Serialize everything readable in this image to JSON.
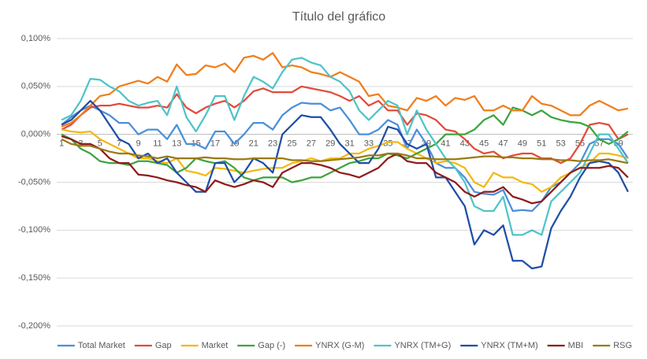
{
  "chart_data": {
    "type": "line",
    "title": "Título del gráfico",
    "categories": [
      1,
      null,
      3,
      null,
      5,
      null,
      7,
      null,
      9,
      null,
      11,
      null,
      13,
      null,
      15,
      null,
      17,
      null,
      19,
      null,
      21,
      null,
      23,
      null,
      25,
      null,
      27,
      null,
      29,
      null,
      31,
      null,
      33,
      null,
      35,
      null,
      37,
      null,
      39,
      null,
      41,
      null,
      43,
      null,
      45,
      null,
      47,
      null,
      49,
      null,
      51,
      null,
      53,
      null,
      55,
      null,
      57,
      null,
      59,
      null
    ],
    "ylim": [
      -0.2,
      0.1
    ],
    "yticks": [
      {
        "value": -0.2,
        "label": "-0,200%"
      },
      {
        "value": -0.15,
        "label": "-0,150%"
      },
      {
        "value": -0.1,
        "label": "-0,100%"
      },
      {
        "value": -0.05,
        "label": "-0,050%"
      },
      {
        "value": 0,
        "label": "0,000%"
      },
      {
        "value": 0.05,
        "label": "0,050%"
      },
      {
        "value": 0.1,
        "label": "0,100%"
      }
    ],
    "grid": true,
    "legend": "bottom",
    "series": [
      {
        "name": "Total Market",
        "color": "#4a8fdb",
        "values": [
          0.01,
          0.018,
          0.025,
          0.03,
          0.025,
          0.02,
          0.012,
          0.012,
          0.0,
          0.005,
          0.005,
          -0.005,
          0.01,
          -0.01,
          -0.01,
          -0.015,
          0.003,
          0.003,
          -0.01,
          0.0,
          0.012,
          0.012,
          0.005,
          0.02,
          0.028,
          0.033,
          0.032,
          0.032,
          0.025,
          0.028,
          0.015,
          0.0,
          0.0,
          0.005,
          0.015,
          0.01,
          -0.015,
          0.005,
          -0.01,
          -0.03,
          -0.035,
          -0.035,
          -0.045,
          -0.06,
          -0.062,
          -0.063,
          -0.058,
          -0.08,
          -0.079,
          -0.08,
          -0.07,
          -0.055,
          -0.05,
          -0.04,
          -0.03,
          -0.01,
          -0.005,
          -0.005,
          -0.01,
          -0.025
        ]
      },
      {
        "name": "Gap",
        "color": "#e24b3b",
        "values": [
          0.005,
          0.01,
          0.02,
          0.028,
          0.03,
          0.03,
          0.032,
          0.03,
          0.028,
          0.028,
          0.03,
          0.028,
          0.042,
          0.028,
          0.022,
          0.028,
          0.032,
          0.035,
          0.028,
          0.035,
          0.045,
          0.048,
          0.044,
          0.044,
          0.044,
          0.05,
          0.048,
          0.046,
          0.044,
          0.04,
          0.035,
          0.04,
          0.03,
          0.035,
          0.025,
          0.025,
          0.01,
          0.022,
          0.02,
          0.015,
          0.005,
          0.003,
          -0.005,
          -0.015,
          -0.02,
          -0.018,
          -0.025,
          -0.022,
          -0.02,
          -0.02,
          -0.025,
          -0.025,
          -0.03,
          -0.025,
          -0.01,
          0.01,
          0.012,
          0.01,
          -0.005,
          0.0
        ]
      },
      {
        "name": "Market",
        "color": "#f2b90f",
        "values": [
          0.005,
          0.003,
          0.002,
          0.003,
          -0.005,
          -0.01,
          -0.015,
          -0.02,
          -0.025,
          -0.025,
          -0.028,
          -0.03,
          -0.025,
          -0.038,
          -0.04,
          -0.043,
          -0.035,
          -0.036,
          -0.038,
          -0.04,
          -0.038,
          -0.036,
          -0.035,
          -0.035,
          -0.03,
          -0.028,
          -0.025,
          -0.028,
          -0.025,
          -0.025,
          -0.02,
          -0.02,
          -0.015,
          -0.012,
          -0.008,
          -0.008,
          -0.015,
          -0.02,
          -0.025,
          -0.03,
          -0.028,
          -0.03,
          -0.035,
          -0.05,
          -0.055,
          -0.04,
          -0.045,
          -0.045,
          -0.05,
          -0.052,
          -0.06,
          -0.055,
          -0.045,
          -0.04,
          -0.035,
          -0.03,
          -0.02,
          -0.02,
          -0.022,
          -0.025
        ]
      },
      {
        "name": "Gap (-)",
        "color": "#3da43d",
        "values": [
          0.0,
          -0.005,
          -0.015,
          -0.02,
          -0.028,
          -0.03,
          -0.03,
          -0.032,
          -0.028,
          -0.028,
          -0.03,
          -0.032,
          -0.04,
          -0.035,
          -0.025,
          -0.028,
          -0.03,
          -0.028,
          -0.035,
          -0.045,
          -0.048,
          -0.045,
          -0.045,
          -0.045,
          -0.05,
          -0.048,
          -0.045,
          -0.045,
          -0.04,
          -0.035,
          -0.03,
          -0.028,
          -0.025,
          -0.025,
          -0.02,
          -0.022,
          -0.025,
          -0.02,
          -0.015,
          -0.01,
          0.0,
          0.0,
          0.0,
          0.005,
          0.015,
          0.02,
          0.01,
          0.028,
          0.025,
          0.02,
          0.025,
          0.018,
          0.015,
          0.013,
          0.012,
          0.008,
          -0.005,
          -0.01,
          -0.005,
          0.003
        ]
      },
      {
        "name": "YNRX (G-M)",
        "color": "#f07e1b",
        "values": [
          0.008,
          0.012,
          0.02,
          0.03,
          0.04,
          0.042,
          0.05,
          0.053,
          0.056,
          0.053,
          0.06,
          0.055,
          0.073,
          0.062,
          0.063,
          0.072,
          0.07,
          0.074,
          0.065,
          0.08,
          0.082,
          0.078,
          0.085,
          0.07,
          0.072,
          0.07,
          0.065,
          0.063,
          0.06,
          0.065,
          0.06,
          0.055,
          0.04,
          0.042,
          0.03,
          0.028,
          0.025,
          0.038,
          0.035,
          0.04,
          0.03,
          0.038,
          0.036,
          0.04,
          0.025,
          0.025,
          0.03,
          0.025,
          0.025,
          0.04,
          0.032,
          0.03,
          0.025,
          0.02,
          0.02,
          0.03,
          0.035,
          0.03,
          0.025,
          0.027
        ]
      },
      {
        "name": "YNRX (TM+G)",
        "color": "#4fc4c8",
        "values": [
          0.015,
          0.02,
          0.035,
          0.058,
          0.057,
          0.05,
          0.045,
          0.035,
          0.03,
          0.033,
          0.035,
          0.02,
          0.05,
          0.018,
          0.003,
          0.02,
          0.04,
          0.04,
          0.015,
          0.04,
          0.06,
          0.055,
          0.048,
          0.065,
          0.078,
          0.08,
          0.075,
          0.072,
          0.06,
          0.055,
          0.045,
          0.025,
          0.015,
          0.025,
          0.035,
          0.03,
          0.0,
          0.025,
          0.005,
          -0.01,
          -0.025,
          -0.035,
          -0.05,
          -0.075,
          -0.08,
          -0.08,
          -0.065,
          -0.105,
          -0.105,
          -0.1,
          -0.105,
          -0.07,
          -0.06,
          -0.05,
          -0.04,
          -0.02,
          0.0,
          0.0,
          -0.015,
          -0.03
        ]
      },
      {
        "name": "YNRX (TM+M)",
        "color": "#1f4ea6",
        "values": [
          0.01,
          0.015,
          0.025,
          0.035,
          0.025,
          0.01,
          -0.005,
          -0.01,
          -0.025,
          -0.02,
          -0.03,
          -0.025,
          -0.04,
          -0.05,
          -0.06,
          -0.06,
          -0.03,
          -0.03,
          -0.05,
          -0.04,
          -0.025,
          -0.03,
          -0.04,
          0.0,
          0.01,
          0.02,
          0.018,
          0.018,
          0.005,
          -0.01,
          -0.02,
          -0.03,
          -0.03,
          -0.015,
          0.008,
          0.005,
          -0.01,
          -0.015,
          -0.01,
          -0.045,
          -0.045,
          -0.06,
          -0.075,
          -0.115,
          -0.1,
          -0.105,
          -0.095,
          -0.132,
          -0.132,
          -0.14,
          -0.138,
          -0.098,
          -0.08,
          -0.065,
          -0.045,
          -0.03,
          -0.028,
          -0.03,
          -0.04,
          -0.06
        ]
      },
      {
        "name": "MBI",
        "color": "#8e1c1c",
        "values": [
          -0.002,
          -0.005,
          -0.01,
          -0.01,
          -0.015,
          -0.025,
          -0.03,
          -0.03,
          -0.042,
          -0.043,
          -0.045,
          -0.048,
          -0.05,
          -0.053,
          -0.055,
          -0.06,
          -0.048,
          -0.052,
          -0.055,
          -0.052,
          -0.048,
          -0.05,
          -0.055,
          -0.04,
          -0.035,
          -0.03,
          -0.03,
          -0.032,
          -0.035,
          -0.04,
          -0.042,
          -0.045,
          -0.04,
          -0.035,
          -0.025,
          -0.02,
          -0.028,
          -0.03,
          -0.03,
          -0.04,
          -0.045,
          -0.05,
          -0.06,
          -0.065,
          -0.06,
          -0.06,
          -0.055,
          -0.065,
          -0.068,
          -0.072,
          -0.07,
          -0.06,
          -0.05,
          -0.04,
          -0.035,
          -0.035,
          -0.035,
          -0.033,
          -0.035,
          -0.045
        ]
      },
      {
        "name": "RSG",
        "color": "#9a7a12",
        "values": [
          -0.005,
          -0.01,
          -0.012,
          -0.012,
          -0.015,
          -0.018,
          -0.02,
          -0.02,
          -0.022,
          -0.023,
          -0.025,
          -0.023,
          -0.025,
          -0.025,
          -0.025,
          -0.024,
          -0.025,
          -0.025,
          -0.026,
          -0.026,
          -0.025,
          -0.025,
          -0.025,
          -0.025,
          -0.027,
          -0.027,
          -0.028,
          -0.028,
          -0.027,
          -0.026,
          -0.025,
          -0.024,
          -0.022,
          -0.022,
          -0.02,
          -0.02,
          -0.022,
          -0.025,
          -0.025,
          -0.026,
          -0.026,
          -0.026,
          -0.025,
          -0.024,
          -0.023,
          -0.023,
          -0.024,
          -0.024,
          -0.025,
          -0.025,
          -0.026,
          -0.026,
          -0.027,
          -0.027,
          -0.028,
          -0.027,
          -0.027,
          -0.026,
          -0.028,
          -0.03
        ]
      }
    ]
  }
}
